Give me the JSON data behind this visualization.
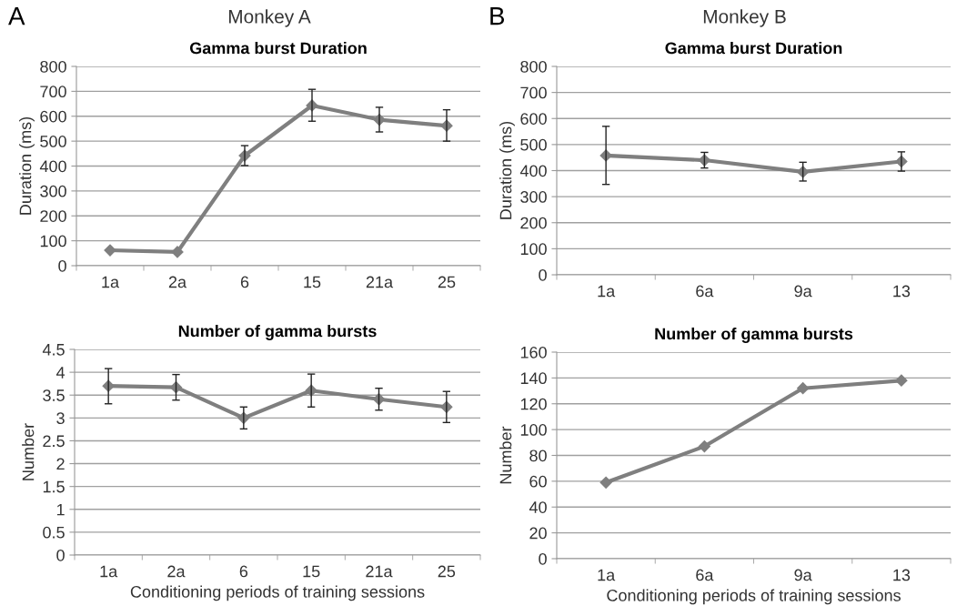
{
  "chart_data": [
    {
      "type": "line",
      "title": "Gamma burst Duration",
      "annotations": [
        "A",
        "Monkey A"
      ],
      "ylabel": "Duration (ms)",
      "categories": [
        "1a",
        "2a",
        "6",
        "15",
        "21a",
        "25"
      ],
      "series": [
        {
          "color": "#7f7f7f",
          "values": [
            62,
            55,
            442,
            643,
            586,
            562
          ],
          "errors": [
            null,
            null,
            [
              402,
              482
            ],
            [
              580,
              708
            ],
            [
              537,
              636
            ],
            [
              500,
              626
            ]
          ]
        }
      ],
      "ylim": [
        0,
        800
      ],
      "yticks": [
        0,
        100,
        200,
        300,
        400,
        500,
        600,
        700,
        800
      ],
      "grid": "y",
      "marker": "diamond",
      "line_style": "solid"
    },
    {
      "type": "line",
      "title": "Gamma burst Duration",
      "annotations": [
        "B",
        "Monkey B"
      ],
      "ylabel": "Duration (ms)",
      "categories": [
        "1a",
        "6a",
        "9a",
        "13"
      ],
      "series": [
        {
          "color": "#7f7f7f",
          "values": [
            458,
            440,
            395,
            435
          ],
          "errors": [
            [
              347,
              570
            ],
            [
              410,
              470
            ],
            [
              360,
              432
            ],
            [
              398,
              472
            ]
          ]
        }
      ],
      "ylim": [
        0,
        800
      ],
      "yticks": [
        0,
        100,
        200,
        300,
        400,
        500,
        600,
        700,
        800
      ],
      "grid": "y",
      "marker": "diamond",
      "line_style": "solid"
    },
    {
      "type": "line",
      "title": "Number of gamma bursts",
      "ylabel": "Number",
      "xlabel": "Conditioning periods of training sessions",
      "categories": [
        "1a",
        "2a",
        "6",
        "15",
        "21a",
        "25"
      ],
      "series": [
        {
          "color": "#7f7f7f",
          "values": [
            3.7,
            3.67,
            3.0,
            3.6,
            3.41,
            3.24
          ],
          "errors": [
            [
              3.31,
              4.08
            ],
            [
              3.39,
              3.95
            ],
            [
              2.76,
              3.24
            ],
            [
              3.24,
              3.96
            ],
            [
              3.17,
              3.65
            ],
            [
              2.9,
              3.58
            ]
          ]
        }
      ],
      "ylim": [
        0,
        4.5
      ],
      "yticks": [
        0,
        0.5,
        1,
        1.5,
        2,
        2.5,
        3,
        3.5,
        4,
        4.5
      ],
      "grid": "y",
      "marker": "diamond",
      "line_style": "solid"
    },
    {
      "type": "line",
      "title": "Number of gamma bursts",
      "ylabel": "Number",
      "xlabel": "Conditioning periods of training sessions",
      "categories": [
        "1a",
        "6a",
        "9a",
        "13"
      ],
      "series": [
        {
          "color": "#7f7f7f",
          "values": [
            59,
            87,
            132,
            138
          ]
        }
      ],
      "ylim": [
        0,
        160
      ],
      "yticks": [
        0,
        20,
        40,
        60,
        80,
        100,
        120,
        140,
        160
      ],
      "grid": "y",
      "marker": "diamond",
      "line_style": "solid"
    }
  ]
}
